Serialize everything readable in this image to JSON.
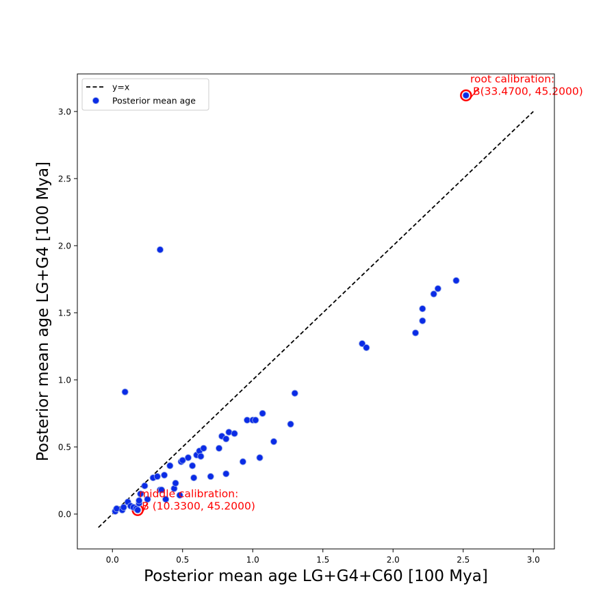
{
  "chart_data": {
    "type": "scatter",
    "xlabel": "Posterior mean age LG+G4+C60 [100 Mya]",
    "ylabel": "Posterior mean age LG+G4 [100 Mya]",
    "xlim": [
      -0.25,
      3.15
    ],
    "ylim": [
      -0.26,
      3.28
    ],
    "xticks": [
      "0.0",
      "0.5",
      "1.0",
      "1.5",
      "2.0",
      "2.5",
      "3.0"
    ],
    "yticks": [
      "0.0",
      "0.5",
      "1.0",
      "1.5",
      "2.0",
      "2.5",
      "3.0"
    ],
    "grid": false,
    "legend_position": "top-left",
    "legend": [
      {
        "label": "y=x",
        "kind": "line"
      },
      {
        "label": "Posterior mean age",
        "kind": "marker"
      }
    ],
    "reference_line": {
      "label": "y=x",
      "x": [
        -0.1,
        3.0
      ],
      "y": [
        -0.1,
        3.0
      ],
      "color": "#000000",
      "style": "dashed"
    },
    "series": [
      {
        "name": "Posterior mean age",
        "color": "#0a2be6",
        "edge_color": "#8fa4e8",
        "points": [
          [
            0.02,
            0.02
          ],
          [
            0.03,
            0.04
          ],
          [
            0.07,
            0.03
          ],
          [
            0.08,
            0.05
          ],
          [
            0.11,
            0.09
          ],
          [
            0.13,
            0.06
          ],
          [
            0.15,
            0.05
          ],
          [
            0.17,
            0.04
          ],
          [
            0.19,
            0.08
          ],
          [
            0.19,
            0.1
          ],
          [
            0.2,
            0.15
          ],
          [
            0.23,
            0.21
          ],
          [
            0.25,
            0.11
          ],
          [
            0.29,
            0.27
          ],
          [
            0.32,
            0.28
          ],
          [
            0.34,
            0.18
          ],
          [
            0.35,
            0.18
          ],
          [
            0.37,
            0.29
          ],
          [
            0.38,
            0.11
          ],
          [
            0.41,
            0.36
          ],
          [
            0.44,
            0.19
          ],
          [
            0.45,
            0.23
          ],
          [
            0.48,
            0.14
          ],
          [
            0.49,
            0.39
          ],
          [
            0.5,
            0.4
          ],
          [
            0.54,
            0.42
          ],
          [
            0.57,
            0.36
          ],
          [
            0.58,
            0.27
          ],
          [
            0.6,
            0.44
          ],
          [
            0.62,
            0.47
          ],
          [
            0.63,
            0.43
          ],
          [
            0.65,
            0.49
          ],
          [
            0.7,
            0.28
          ],
          [
            0.76,
            0.49
          ],
          [
            0.78,
            0.58
          ],
          [
            0.81,
            0.56
          ],
          [
            0.81,
            0.3
          ],
          [
            0.83,
            0.61
          ],
          [
            0.87,
            0.6
          ],
          [
            0.93,
            0.39
          ],
          [
            0.96,
            0.7
          ],
          [
            1.0,
            0.7
          ],
          [
            1.02,
            0.7
          ],
          [
            1.05,
            0.42
          ],
          [
            1.07,
            0.75
          ],
          [
            1.15,
            0.54
          ],
          [
            1.27,
            0.67
          ],
          [
            1.3,
            0.9
          ],
          [
            0.09,
            0.91
          ],
          [
            0.34,
            1.97
          ],
          [
            1.78,
            1.27
          ],
          [
            1.81,
            1.24
          ],
          [
            2.16,
            1.35
          ],
          [
            2.21,
            1.44
          ],
          [
            2.21,
            1.53
          ],
          [
            2.29,
            1.64
          ],
          [
            2.32,
            1.68
          ],
          [
            2.45,
            1.74
          ],
          [
            0.18,
            0.03
          ],
          [
            2.52,
            3.12
          ]
        ]
      }
    ],
    "highlighted": [
      {
        "x": 2.52,
        "y": 3.12,
        "ring_color": "#ff0000",
        "label_line1": "root calibration:",
        "label_line2": "B(33.4700, 45.2000)",
        "text_x": 2.55,
        "text_y": 3.215
      },
      {
        "x": 0.18,
        "y": 0.03,
        "ring_color": "#ff0000",
        "label_line1": "middle calibration:",
        "label_line2": "B (10.3300, 45.2000)",
        "text_x": 0.19,
        "text_y": 0.125
      }
    ]
  }
}
